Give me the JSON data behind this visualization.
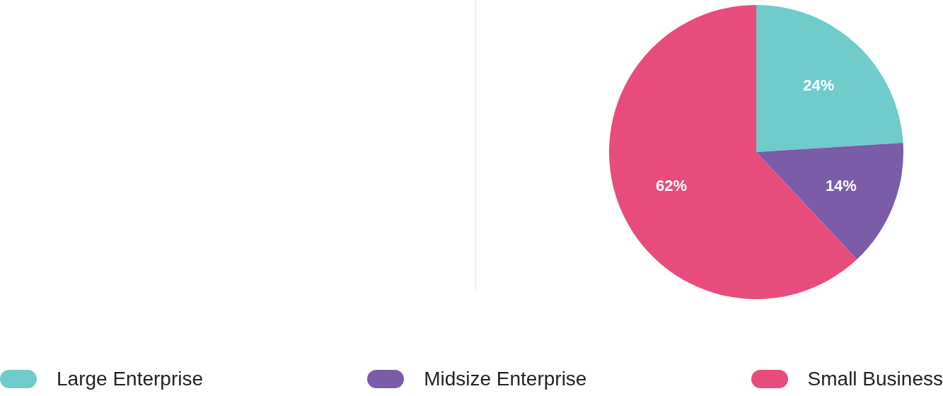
{
  "chart_data": {
    "type": "pie",
    "categories": [
      "Large Enterprise",
      "Midsize Enterprise",
      "Small Business"
    ],
    "values": [
      24,
      14,
      62
    ],
    "colors": [
      "#70cbcb",
      "#7a5ca8",
      "#e84c7d"
    ],
    "value_labels": [
      "24%",
      "14%",
      "62%"
    ],
    "legend": "bottom"
  }
}
